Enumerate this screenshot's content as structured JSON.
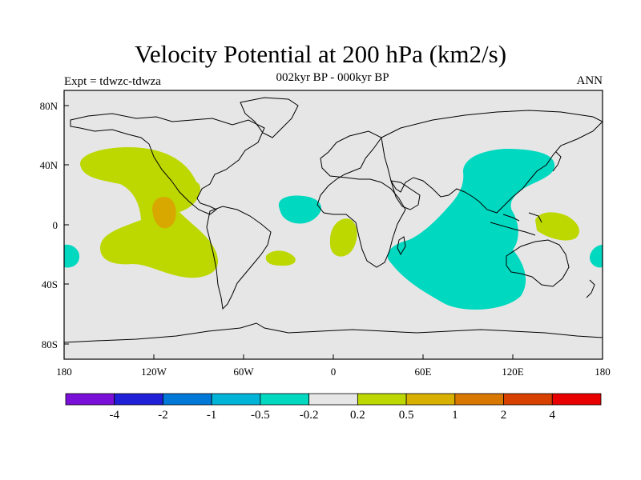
{
  "title": "Velocity Potential at 200 hPa (km2/s)",
  "subtitle": "002kyr BP - 000kyr BP",
  "left_label": "Expt = tdwzc-tdwza",
  "right_label": "ANN",
  "colors": {
    "background_map": "#e6e6e6",
    "coast": "#000000",
    "neg_02": "#00d8c0",
    "pos_02": "#bcd800",
    "pos_05": "#d8a800"
  },
  "lon_ticks": [
    "180",
    "120W",
    "60W",
    "0",
    "60E",
    "120E",
    "180"
  ],
  "lat_ticks": [
    "80N",
    "40N",
    "0",
    "40S",
    "80S"
  ],
  "colorbar": {
    "colors": [
      "#7a10d8",
      "#2020d8",
      "#0078d8",
      "#00b4d8",
      "#00d8c0",
      "#e6e6e6",
      "#bcd800",
      "#d8b000",
      "#d87800",
      "#d84000",
      "#e80000"
    ],
    "labels": [
      "-4",
      "-2",
      "-1",
      "-0.5",
      "-0.2",
      "0.2",
      "0.5",
      "1",
      "2",
      "4"
    ]
  }
}
